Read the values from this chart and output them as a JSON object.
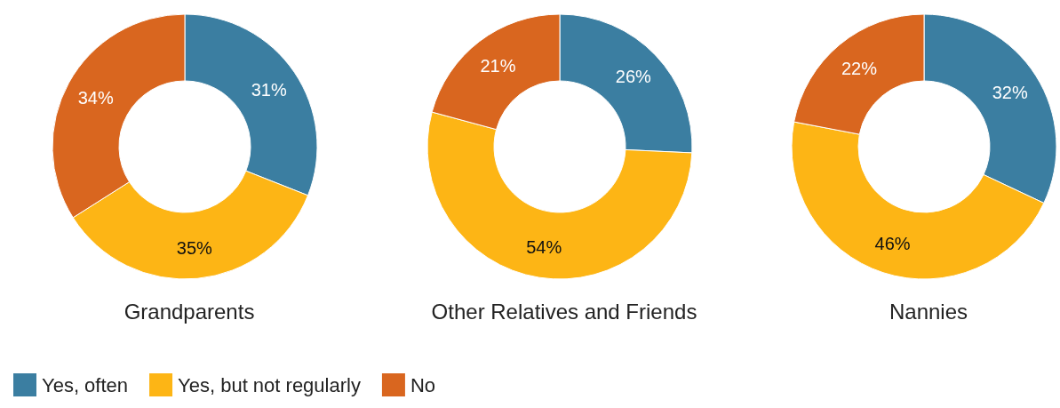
{
  "chart_data": [
    {
      "type": "donut",
      "title": "Grandparents",
      "categories": [
        "Yes, often",
        "Yes, but not regularly",
        "No"
      ],
      "values": [
        31,
        35,
        34
      ],
      "colors": [
        "#3b7ea1",
        "#fdb515",
        "#d9661f"
      ],
      "value_labels": [
        "31%",
        "35%",
        "34%"
      ],
      "legend": "bottom"
    },
    {
      "type": "donut",
      "title": "Other Relatives and Friends",
      "categories": [
        null,
        null,
        null
      ],
      "values": [
        26,
        54,
        21
      ],
      "colors": [
        "#3b7ea1",
        "#fdb515",
        "#d9661f"
      ],
      "value_labels": [
        "26%",
        "54%",
        "21%"
      ]
    },
    {
      "type": "donut",
      "title": "Nannies",
      "categories": [
        null,
        null,
        null
      ],
      "values": [
        32,
        46,
        22
      ],
      "colors": [
        "#3b7ea1",
        "#fdb515",
        "#d9661f"
      ],
      "value_labels": [
        "32%",
        "46%",
        "22%"
      ]
    }
  ]
}
